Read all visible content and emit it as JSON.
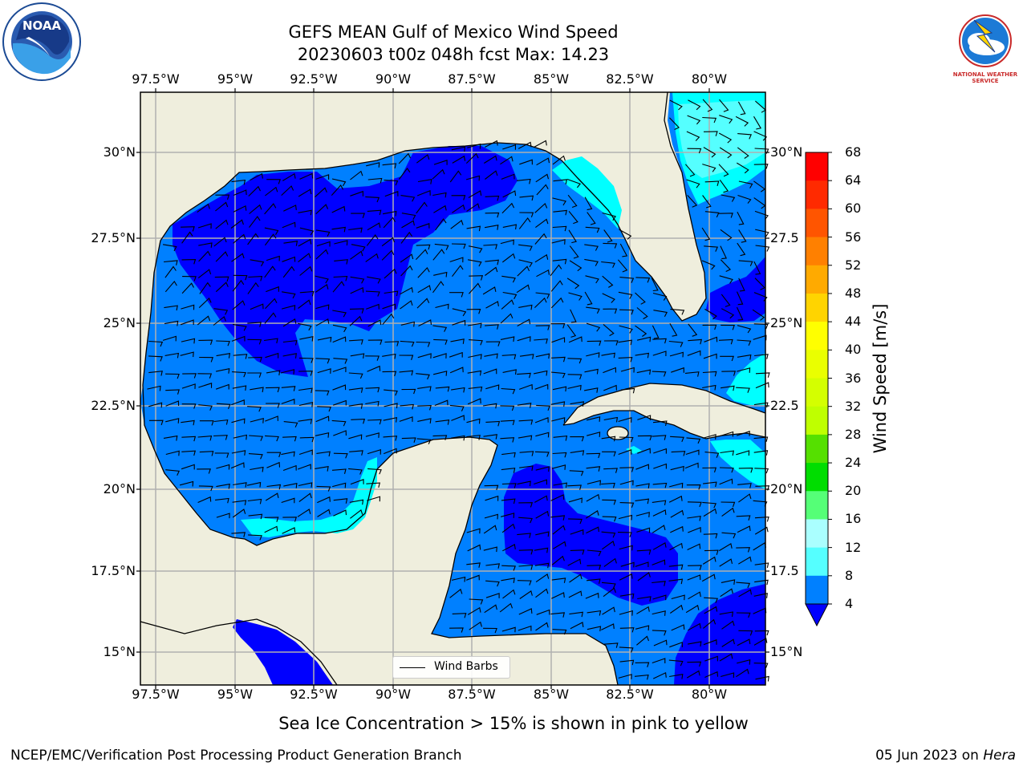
{
  "title": {
    "line1": "GEFS MEAN Gulf of Mexico Wind Speed",
    "line2": "20230603 t00z 048h fcst   Max: 14.23"
  },
  "axes": {
    "lon_ticks": [
      "97.5°W",
      "95°W",
      "92.5°W",
      "90°W",
      "87.5°W",
      "85°W",
      "82.5°W",
      "80°W"
    ],
    "lat_ticks_left": [
      "30°N",
      "27.5°N",
      "25°N",
      "22.5°N",
      "20°N",
      "17.5°N",
      "15°N"
    ],
    "lat_ticks_right": [
      "30°N",
      "27.5",
      "25°N",
      "22.5",
      "20°N",
      "17.5",
      "15°N"
    ]
  },
  "colorbar": {
    "label": "Wind Speed [m/s]",
    "ticks": [
      "68",
      "64",
      "60",
      "56",
      "52",
      "48",
      "44",
      "40",
      "36",
      "32",
      "28",
      "24",
      "20",
      "16",
      "12",
      "8",
      "4"
    ],
    "colors": [
      "#ff0000",
      "#ff2a00",
      "#ff5500",
      "#ff8000",
      "#ffaa00",
      "#ffd400",
      "#ffff00",
      "#eaff00",
      "#d4ff00",
      "#bfff00",
      "#55e000",
      "#00dd00",
      "#55ff77",
      "#aaffff",
      "#55ffff",
      "#00ffff",
      "#0080ff"
    ],
    "under_color": "#0000ff"
  },
  "legend": {
    "label": "Wind Barbs"
  },
  "footer": {
    "note": "Sea Ice Concentration > 15% is shown in pink to yellow",
    "left": "NCEP/EMC/Verification Post Processing Product Generation Branch",
    "right_date": "05 Jun 2023 on ",
    "right_host": "Hera"
  },
  "logos": {
    "noaa": {
      "text": "NOAA"
    },
    "nws": {
      "text": "NATIONAL WEATHER SERVICE"
    }
  },
  "colors": {
    "land": "#efeedd",
    "band_4_8": "#0080ff",
    "band_under_4": "#0000ff",
    "band_8_12": "#00ffff",
    "band_12_16": "#55ffff",
    "grid": "#b0b0b0"
  }
}
